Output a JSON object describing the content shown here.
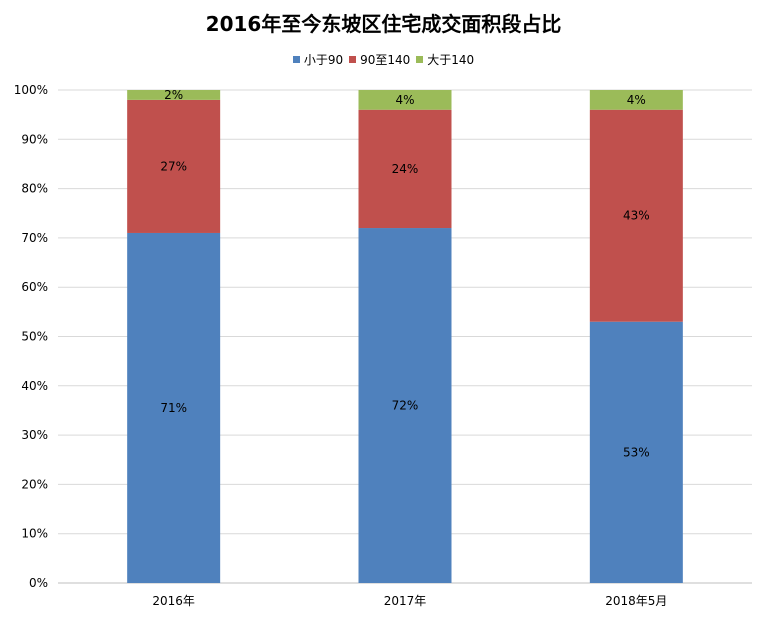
{
  "chart_data": {
    "type": "bar",
    "stacked": true,
    "percent_stacked": true,
    "title": "2016年至今东坡区住宅成交面积段占比",
    "categories": [
      "2016年",
      "2017年",
      "2018年5月"
    ],
    "series": [
      {
        "name": "小于90",
        "color": "#4F81BD",
        "values": [
          71,
          72,
          53
        ],
        "labels": [
          "71%",
          "72%",
          "53%"
        ]
      },
      {
        "name": "90至140",
        "color": "#C0504D",
        "values": [
          27,
          24,
          43
        ],
        "labels": [
          "27%",
          "24%",
          "43%"
        ]
      },
      {
        "name": "大于140",
        "color": "#9BBB59",
        "values": [
          2,
          4,
          4
        ],
        "labels": [
          "2%",
          "4%",
          "4%"
        ]
      }
    ],
    "ylim": [
      0,
      100
    ],
    "yticks": [
      "0%",
      "10%",
      "20%",
      "30%",
      "40%",
      "50%",
      "60%",
      "70%",
      "80%",
      "90%",
      "100%"
    ],
    "grid": true,
    "legend_position": "top"
  }
}
